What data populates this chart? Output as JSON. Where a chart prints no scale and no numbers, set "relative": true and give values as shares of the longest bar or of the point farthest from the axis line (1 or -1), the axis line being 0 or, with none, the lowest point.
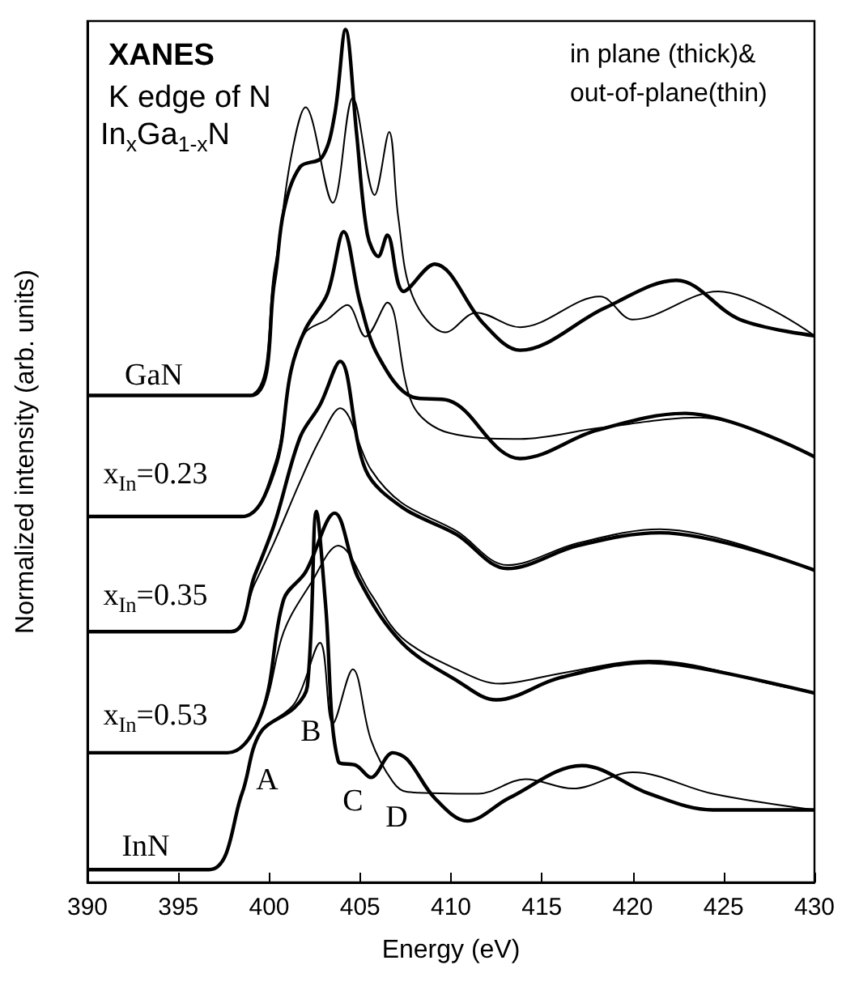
{
  "chart_data": {
    "type": "line",
    "title": "XANES",
    "subtitle": "K edge of N",
    "xlabel": "Energy (eV)",
    "ylabel": "Normalized intensity (arb. units)",
    "relative": true,
    "xlim": [
      390,
      430
    ],
    "xticks": [
      390,
      395,
      400,
      405,
      410,
      415,
      420,
      425,
      430
    ],
    "grid": false,
    "marker": "none",
    "line_style": "solid",
    "annotations": [
      "In$_{x}$Ga$_{1-x}$N",
      "in plane (thick)& out-of-plane(thin)",
      "GaN",
      "x$_{In}$=0.23",
      "x$_{In}$=0.35",
      "x$_{In}$=0.53",
      "InN",
      "A",
      "B",
      "C",
      "D"
    ],
    "series": [
      {
        "color": "#000000",
        "x": [
          390,
          399,
          400.3,
          400.8,
          401.7,
          402.9,
          403.6,
          404.2,
          404.8,
          405.4,
          406,
          406.5,
          407.4,
          409.1,
          411.8,
          413.8,
          418.5,
          422.4,
          425.9,
          430
        ],
        "values": [
          0.571,
          0.571,
          0.706,
          0.787,
          0.839,
          0.85,
          0.9,
          1.0,
          0.88,
          0.76,
          0.734,
          0.759,
          0.693,
          0.725,
          0.655,
          0.624,
          0.674,
          0.706,
          0.66,
          0.641
        ]
      },
      {
        "color": "#000000",
        "x": [
          390,
          398.8,
          400.3,
          401.2,
          402,
          403.5,
          404.6,
          405.8,
          406.6,
          407.1,
          407.9,
          409.7,
          411.4,
          413.8,
          418.2,
          420,
          424.7,
          430
        ],
        "values": [
          0.571,
          0.571,
          0.72,
          0.85,
          0.909,
          0.797,
          0.92,
          0.806,
          0.88,
          0.78,
          0.687,
          0.645,
          0.668,
          0.651,
          0.687,
          0.66,
          0.693,
          0.641
        ]
      },
      {
        "color": "#000000",
        "x": [
          390,
          398.5,
          400.3,
          401.2,
          402,
          403.2,
          404.1,
          405,
          406,
          407.9,
          409.9,
          412.7,
          413.8,
          418,
          422.9,
          430
        ],
        "values": [
          0.429,
          0.429,
          0.484,
          0.6,
          0.649,
          0.69,
          0.763,
          0.68,
          0.617,
          0.569,
          0.565,
          0.507,
          0.497,
          0.53,
          0.55,
          0.499
        ]
      },
      {
        "color": "#000000",
        "x": [
          390,
          398.5,
          400.3,
          401.2,
          402,
          403.2,
          404.3,
          405.3,
          406.5,
          407.9,
          409.9,
          413.8,
          418.2,
          423.7,
          430
        ],
        "values": [
          0.429,
          0.429,
          0.49,
          0.6,
          0.645,
          0.66,
          0.677,
          0.64,
          0.68,
          0.56,
          0.527,
          0.52,
          0.533,
          0.545,
          0.499
        ]
      },
      {
        "color": "#000000",
        "x": [
          390,
          397.9,
          399.2,
          400.3,
          401.7,
          402.8,
          403.9,
          405.3,
          407.3,
          410.3,
          413.1,
          417,
          421.5,
          430
        ],
        "values": [
          0.294,
          0.294,
          0.36,
          0.421,
          0.522,
          0.56,
          0.611,
          0.484,
          0.44,
          0.408,
          0.368,
          0.395,
          0.41,
          0.366
        ]
      },
      {
        "color": "#000000",
        "x": [
          390,
          397.9,
          399.2,
          400.3,
          401.7,
          402.8,
          403.9,
          405.6,
          407.3,
          410.3,
          413.1,
          417,
          421.5,
          430
        ],
        "values": [
          0.294,
          0.294,
          0.35,
          0.4,
          0.47,
          0.52,
          0.556,
          0.484,
          0.445,
          0.412,
          0.372,
          0.398,
          0.414,
          0.366
        ]
      },
      {
        "color": "#000000",
        "x": [
          390,
          397.7,
          399.6,
          400.8,
          402,
          403.6,
          404.9,
          407.3,
          410.3,
          412.5,
          416,
          420.9,
          424,
          430
        ],
        "values": [
          0.152,
          0.152,
          0.199,
          0.332,
          0.364,
          0.433,
          0.357,
          0.281,
          0.237,
          0.214,
          0.24,
          0.258,
          0.25,
          0.222
        ]
      },
      {
        "color": "#000000",
        "x": [
          390,
          397.7,
          399.6,
          400.8,
          402.3,
          403.8,
          405.6,
          407.3,
          410.3,
          412.7,
          416,
          420.9,
          428.2,
          430
        ],
        "values": [
          0.152,
          0.152,
          0.199,
          0.294,
          0.351,
          0.395,
          0.338,
          0.287,
          0.25,
          0.233,
          0.245,
          0.26,
          0.23,
          0.222
        ]
      },
      {
        "color": "#000000",
        "x": [
          390,
          396.7,
          398.5,
          399.5,
          401.4,
          402.1,
          402.6,
          403.1,
          403.8,
          404.8,
          405.6,
          406.8,
          407.6,
          409.1,
          410.9,
          413.2,
          417.2,
          420.9,
          424.4,
          430
        ],
        "values": [
          0.015,
          0.015,
          0.104,
          0.175,
          0.205,
          0.23,
          0.435,
          0.326,
          0.142,
          0.137,
          0.123,
          0.152,
          0.144,
          0.099,
          0.072,
          0.099,
          0.137,
          0.104,
          0.085,
          0.085
        ]
      },
      {
        "color": "#000000",
        "x": [
          390,
          396.7,
          398.5,
          399.5,
          401.4,
          402.8,
          403.5,
          404.6,
          405.6,
          406.8,
          407.6,
          411.5,
          414.1,
          416.7,
          420,
          424.4,
          430
        ],
        "values": [
          0.015,
          0.015,
          0.104,
          0.175,
          0.21,
          0.281,
          0.186,
          0.25,
          0.167,
          0.118,
          0.106,
          0.104,
          0.121,
          0.11,
          0.129,
          0.104,
          0.085
        ]
      }
    ]
  }
}
